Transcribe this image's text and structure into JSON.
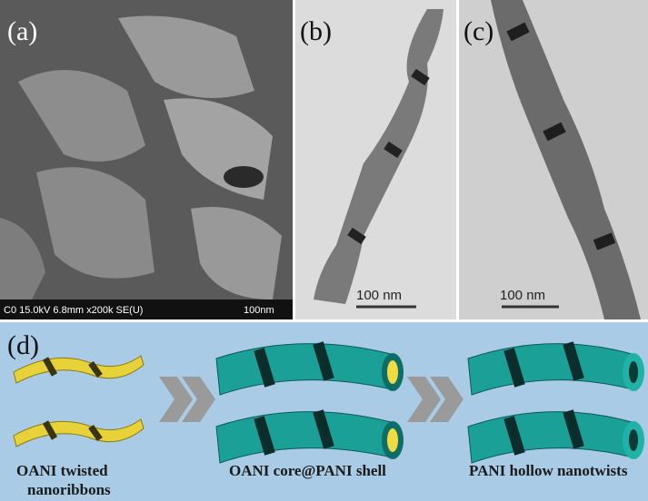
{
  "panel_a": {
    "label": "(a)",
    "info": "C0 15.0kV 6.8mm x200k SE(U)",
    "scale": "100nm"
  },
  "panel_b": {
    "label": "(b)",
    "scale": "100 nm"
  },
  "panel_c": {
    "label": "(c)",
    "scale": "100 nm"
  },
  "panel_d": {
    "label": "(d)",
    "captions": [
      [
        "OANI twisted",
        "nanoribbons"
      ],
      [
        "OANI core@PANI shell"
      ],
      [
        "PANI hollow nanotwists"
      ]
    ]
  }
}
